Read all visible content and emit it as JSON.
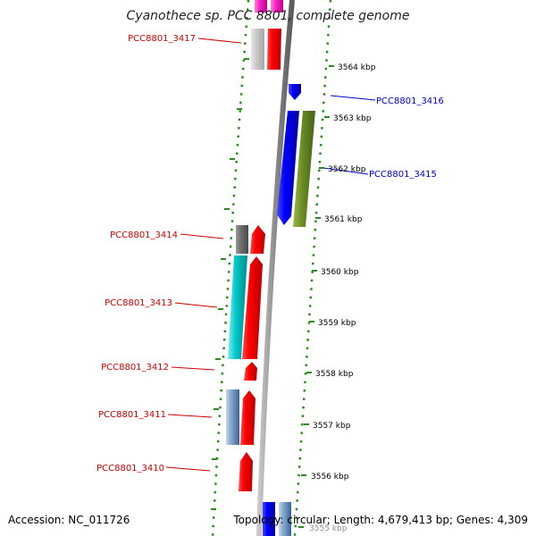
{
  "title": "Cyanothece sp. PCC 8801, complete genome",
  "accession": "Accession: NC_011726",
  "genome_info": "Topology: circular; Length: 4,679,413 bp; Genes: 4,309",
  "colors": {
    "backbone": "#808080",
    "ring": "#2e8b22",
    "label_red": "#cc0000",
    "label_blue": "#0000cc",
    "tick_label": "#000000"
  },
  "ticks": [
    {
      "kbp": 3564,
      "label": "3564 kbp"
    },
    {
      "kbp": 3563,
      "label": "3563 kbp"
    },
    {
      "kbp": 3562,
      "label": "3562 kbp"
    },
    {
      "kbp": 3561,
      "label": "3561 kbp"
    },
    {
      "kbp": 3560,
      "label": "3560 kbp"
    },
    {
      "kbp": 3559,
      "label": "3559 kbp"
    },
    {
      "kbp": 3558,
      "label": "3558 kbp"
    },
    {
      "kbp": 3557,
      "label": "3557 kbp"
    },
    {
      "kbp": 3556,
      "label": "3556 kbp"
    },
    {
      "kbp": 3555,
      "label": "3555 kbp"
    }
  ],
  "gene_labels": [
    {
      "id": "3417",
      "text": "PCC8801_3417",
      "color": "#cc0000"
    },
    {
      "id": "3416",
      "text": "PCC8801_3416",
      "color": "#0000cc"
    },
    {
      "id": "3415",
      "text": "PCC8801_3415",
      "color": "#0000cc"
    },
    {
      "id": "3414",
      "text": "PCC8801_3414",
      "color": "#cc0000"
    },
    {
      "id": "3413",
      "text": "PCC8801_3413",
      "color": "#cc0000"
    },
    {
      "id": "3412",
      "text": "PCC8801_3412",
      "color": "#cc0000"
    },
    {
      "id": "3411",
      "text": "PCC8801_3411",
      "color": "#cc0000"
    },
    {
      "id": "3410",
      "text": "PCC8801_3410",
      "color": "#cc0000"
    }
  ]
}
